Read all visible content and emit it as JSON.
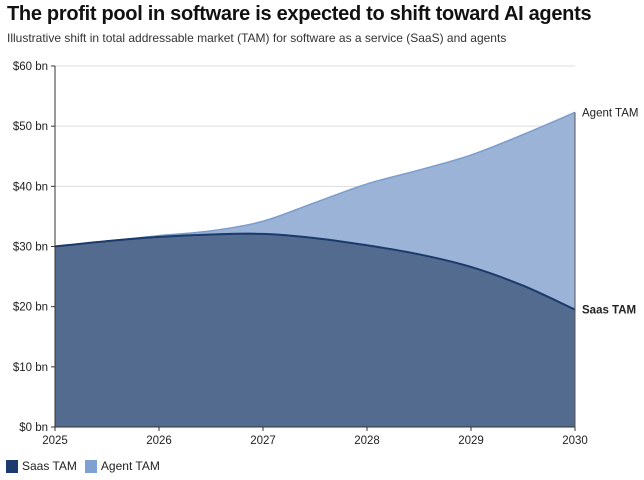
{
  "title": "The profit pool in software is expected to shift toward AI agents",
  "subtitle": "Illustrative shift in total addressable market (TAM) for software as a service (SaaS) and agents",
  "chart_data": {
    "type": "area",
    "title": "The profit pool in software is expected to shift toward AI agents",
    "subtitle": "Illustrative shift in total addressable market (TAM) for software as a service (SaaS) and agents",
    "x": [
      2025,
      2025.5,
      2026,
      2026.5,
      2027,
      2027.5,
      2028,
      2028.5,
      2029,
      2029.5,
      2030
    ],
    "xticks": [
      "2025",
      "2026",
      "2027",
      "2028",
      "2029",
      "2030"
    ],
    "yticks": [
      "$0 bn",
      "$10 bn",
      "$20 bn",
      "$30 bn",
      "$40 bn",
      "$50 bn",
      "$60 bn"
    ],
    "ylim": [
      0,
      60
    ],
    "xlim": [
      2025,
      2030
    ],
    "grid": true,
    "legend": "bottom-left",
    "series": [
      {
        "name": "Saas TAM",
        "values": [
          30,
          30.9,
          31.6,
          32.0,
          32.1,
          31.4,
          30.2,
          28.7,
          26.6,
          23.5,
          19.5
        ],
        "line_color": "#1b3a6b",
        "fill_color": "#536b8f",
        "label": "Saas TAM"
      },
      {
        "name": "Agent TAM",
        "values": [
          30,
          30.9,
          31.8,
          32.6,
          34.2,
          37.3,
          40.4,
          42.7,
          45.2,
          48.6,
          52.3
        ],
        "line_color": "#7b9dcc",
        "fill_color": "#9bb3d6",
        "label": "Agent TAM"
      }
    ]
  },
  "legend": {
    "items": [
      {
        "label": "Saas TAM",
        "color": "#1d3a6e"
      },
      {
        "label": "Agent TAM",
        "color": "#7ea1d2"
      }
    ]
  }
}
